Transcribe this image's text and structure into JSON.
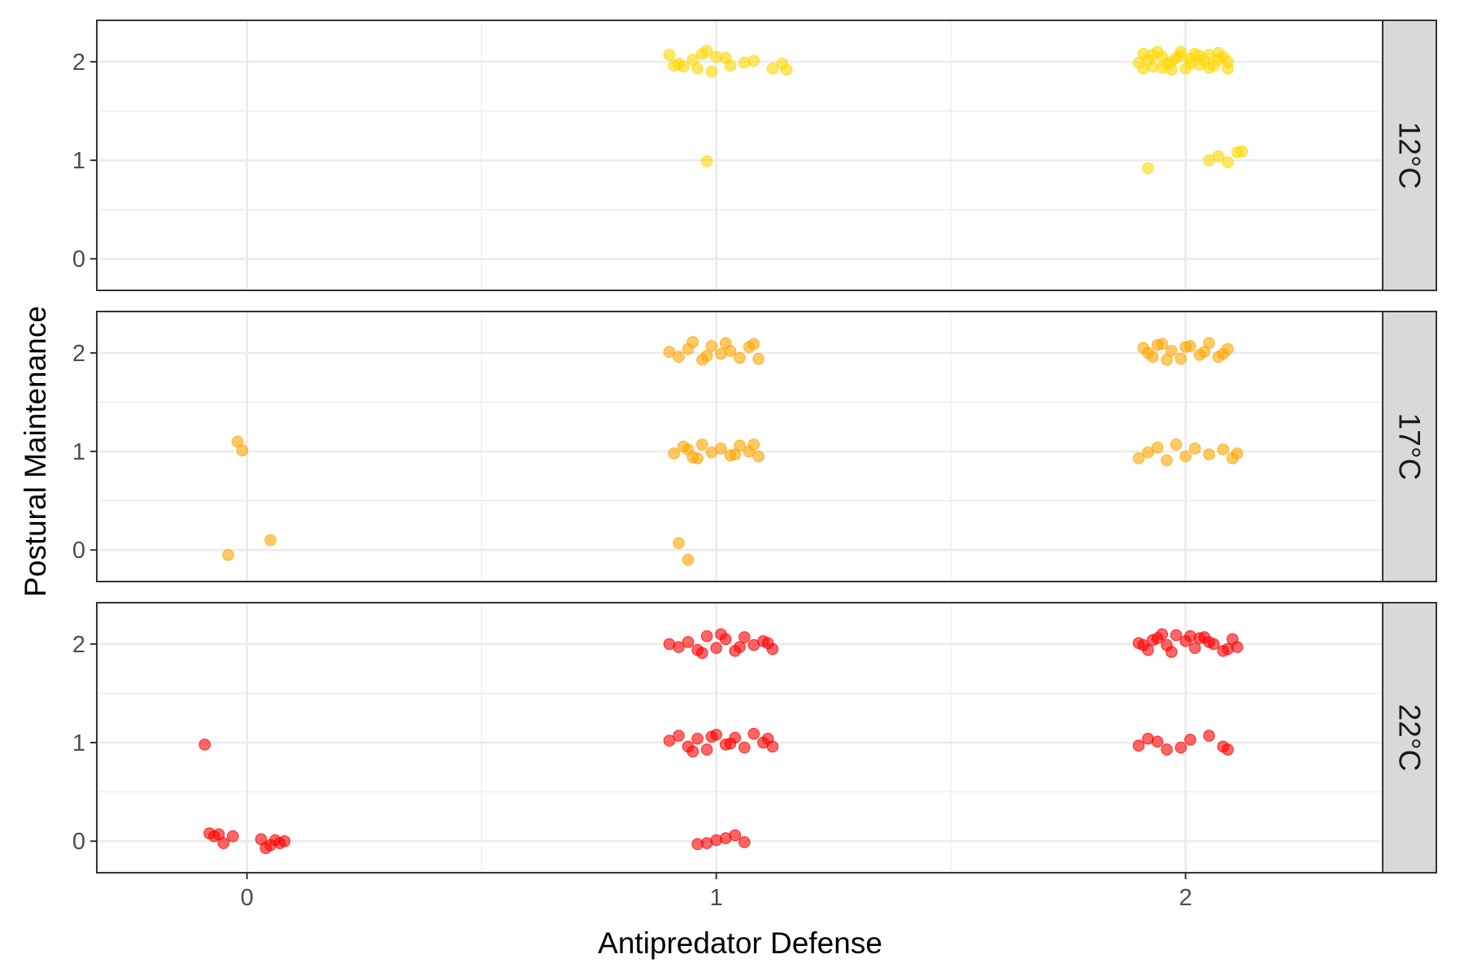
{
  "chart_data": {
    "type": "scatter",
    "xlabel": "Antipredator Defense",
    "ylabel": "Postural Maintenance",
    "x_ticks": [
      "0",
      "1",
      "2"
    ],
    "y_ticks": [
      "0",
      "1",
      "2"
    ],
    "xlim": [
      -0.32,
      2.42
    ],
    "ylim": [
      -0.32,
      2.42
    ],
    "grid": true,
    "legend": "none",
    "panels": [
      {
        "label": "12°C",
        "color": "#FFD700",
        "points": [
          [
            0.9,
            2.07
          ],
          [
            0.92,
            1.98
          ],
          [
            0.95,
            2.02
          ],
          [
            0.97,
            2.08
          ],
          [
            0.98,
            2.11
          ],
          [
            1.0,
            2.05
          ],
          [
            0.93,
            1.95
          ],
          [
            0.96,
            1.93
          ],
          [
            0.99,
            1.9
          ],
          [
            1.02,
            2.04
          ],
          [
            1.03,
            1.96
          ],
          [
            1.06,
            1.99
          ],
          [
            1.08,
            2.01
          ],
          [
            1.12,
            1.93
          ],
          [
            1.14,
            1.98
          ],
          [
            1.15,
            1.92
          ],
          [
            0.91,
            1.96
          ],
          [
            0.98,
            0.99
          ],
          [
            1.91,
            2.08
          ],
          [
            1.93,
            1.95
          ],
          [
            1.95,
            2.05
          ],
          [
            1.97,
            1.92
          ],
          [
            1.99,
            2.1
          ],
          [
            2.01,
            1.98
          ],
          [
            2.03,
            2.06
          ],
          [
            2.05,
            1.94
          ],
          [
            2.07,
            2.09
          ],
          [
            2.09,
            2.0
          ],
          [
            1.92,
            2.02
          ],
          [
            1.94,
            2.1
          ],
          [
            1.96,
            1.98
          ],
          [
            1.98,
            2.04
          ],
          [
            2.0,
            1.93
          ],
          [
            2.02,
            2.08
          ],
          [
            2.04,
            2.01
          ],
          [
            2.06,
            1.96
          ],
          [
            2.08,
            2.05
          ],
          [
            1.9,
            1.99
          ],
          [
            1.93,
            2.07
          ],
          [
            1.97,
            2.0
          ],
          [
            2.01,
            2.03
          ],
          [
            2.05,
            2.07
          ],
          [
            2.09,
            1.93
          ],
          [
            1.95,
            1.94
          ],
          [
            1.99,
            2.06
          ],
          [
            2.03,
            1.97
          ],
          [
            2.07,
            2.02
          ],
          [
            1.91,
            1.93
          ],
          [
            1.92,
            0.92
          ],
          [
            2.05,
            1.0
          ],
          [
            2.07,
            1.04
          ],
          [
            2.09,
            0.98
          ],
          [
            2.12,
            1.09
          ],
          [
            2.11,
            1.08
          ]
        ]
      },
      {
        "label": "17°C",
        "color": "#FFA500",
        "points": [
          [
            -0.02,
            1.1
          ],
          [
            -0.01,
            1.01
          ],
          [
            -0.04,
            -0.05
          ],
          [
            0.05,
            0.1
          ],
          [
            0.9,
            2.01
          ],
          [
            0.92,
            1.96
          ],
          [
            0.94,
            2.04
          ],
          [
            0.95,
            2.11
          ],
          [
            0.97,
            1.93
          ],
          [
            0.99,
            2.07
          ],
          [
            1.01,
            1.99
          ],
          [
            1.03,
            2.02
          ],
          [
            1.05,
            1.95
          ],
          [
            1.07,
            2.06
          ],
          [
            1.09,
            1.94
          ],
          [
            1.08,
            2.09
          ],
          [
            0.98,
            1.97
          ],
          [
            1.02,
            2.1
          ],
          [
            0.91,
            0.98
          ],
          [
            0.93,
            1.05
          ],
          [
            0.95,
            0.94
          ],
          [
            0.97,
            1.07
          ],
          [
            0.99,
            0.99
          ],
          [
            1.01,
            1.03
          ],
          [
            1.03,
            0.96
          ],
          [
            1.05,
            1.06
          ],
          [
            1.07,
            1.0
          ],
          [
            1.09,
            0.95
          ],
          [
            1.08,
            1.07
          ],
          [
            0.94,
            1.02
          ],
          [
            0.96,
            0.93
          ],
          [
            1.04,
            0.97
          ],
          [
            0.92,
            0.07
          ],
          [
            0.94,
            -0.1
          ],
          [
            1.91,
            2.05
          ],
          [
            1.93,
            1.96
          ],
          [
            1.95,
            2.09
          ],
          [
            1.97,
            2.02
          ],
          [
            1.99,
            1.94
          ],
          [
            2.01,
            2.07
          ],
          [
            2.03,
            1.98
          ],
          [
            2.05,
            2.1
          ],
          [
            2.07,
            1.96
          ],
          [
            2.09,
            2.04
          ],
          [
            1.92,
            2.0
          ],
          [
            1.96,
            1.93
          ],
          [
            2.0,
            2.06
          ],
          [
            2.04,
            2.01
          ],
          [
            2.08,
            1.99
          ],
          [
            1.94,
            2.08
          ],
          [
            1.9,
            0.93
          ],
          [
            1.92,
            0.99
          ],
          [
            1.94,
            1.04
          ],
          [
            1.96,
            0.91
          ],
          [
            1.98,
            1.07
          ],
          [
            2.0,
            0.95
          ],
          [
            2.02,
            1.03
          ],
          [
            2.05,
            0.97
          ],
          [
            2.08,
            1.02
          ],
          [
            2.1,
            0.93
          ],
          [
            2.11,
            0.98
          ]
        ]
      },
      {
        "label": "22°C",
        "color": "#FF0000",
        "points": [
          [
            -0.09,
            0.98
          ],
          [
            -0.08,
            0.08
          ],
          [
            -0.07,
            0.05
          ],
          [
            -0.06,
            0.07
          ],
          [
            -0.05,
            -0.02
          ],
          [
            -0.03,
            0.05
          ],
          [
            0.03,
            0.02
          ],
          [
            0.04,
            -0.07
          ],
          [
            0.05,
            -0.04
          ],
          [
            0.06,
            0.01
          ],
          [
            0.07,
            -0.02
          ],
          [
            0.08,
            0.0
          ],
          [
            0.9,
            2.0
          ],
          [
            0.92,
            1.97
          ],
          [
            0.94,
            2.02
          ],
          [
            0.96,
            1.94
          ],
          [
            0.98,
            2.08
          ],
          [
            1.0,
            1.96
          ],
          [
            1.02,
            2.05
          ],
          [
            1.04,
            1.93
          ],
          [
            1.06,
            2.07
          ],
          [
            1.08,
            1.99
          ],
          [
            1.1,
            2.03
          ],
          [
            1.12,
            1.95
          ],
          [
            1.11,
            2.01
          ],
          [
            0.97,
            1.91
          ],
          [
            1.01,
            2.1
          ],
          [
            1.05,
            1.97
          ],
          [
            0.9,
            1.02
          ],
          [
            0.92,
            1.07
          ],
          [
            0.94,
            0.96
          ],
          [
            0.96,
            1.04
          ],
          [
            0.98,
            0.93
          ],
          [
            1.0,
            1.08
          ],
          [
            1.02,
            0.98
          ],
          [
            1.04,
            1.05
          ],
          [
            1.06,
            0.95
          ],
          [
            1.08,
            1.09
          ],
          [
            1.1,
            1.0
          ],
          [
            1.12,
            0.96
          ],
          [
            1.11,
            1.04
          ],
          [
            0.95,
            0.91
          ],
          [
            0.99,
            1.06
          ],
          [
            1.03,
            0.99
          ],
          [
            0.96,
            -0.03
          ],
          [
            0.98,
            -0.02
          ],
          [
            1.0,
            0.01
          ],
          [
            1.02,
            0.03
          ],
          [
            1.04,
            0.06
          ],
          [
            1.06,
            -0.01
          ],
          [
            1.9,
            2.01
          ],
          [
            1.92,
            1.94
          ],
          [
            1.94,
            2.06
          ],
          [
            1.96,
            1.99
          ],
          [
            1.98,
            2.09
          ],
          [
            2.0,
            2.03
          ],
          [
            2.02,
            1.96
          ],
          [
            2.04,
            2.07
          ],
          [
            2.06,
            2.0
          ],
          [
            2.08,
            1.93
          ],
          [
            2.1,
            2.05
          ],
          [
            2.11,
            1.97
          ],
          [
            1.93,
            2.04
          ],
          [
            1.97,
            1.92
          ],
          [
            2.01,
            2.08
          ],
          [
            2.05,
            2.02
          ],
          [
            2.09,
            1.95
          ],
          [
            1.95,
            2.1
          ],
          [
            2.03,
            2.06
          ],
          [
            1.91,
            1.99
          ],
          [
            1.9,
            0.97
          ],
          [
            1.92,
            1.04
          ],
          [
            1.94,
            1.01
          ],
          [
            1.96,
            0.93
          ],
          [
            1.99,
            0.95
          ],
          [
            2.01,
            1.03
          ],
          [
            2.05,
            1.07
          ],
          [
            2.08,
            0.96
          ],
          [
            2.09,
            0.93
          ]
        ]
      }
    ]
  }
}
